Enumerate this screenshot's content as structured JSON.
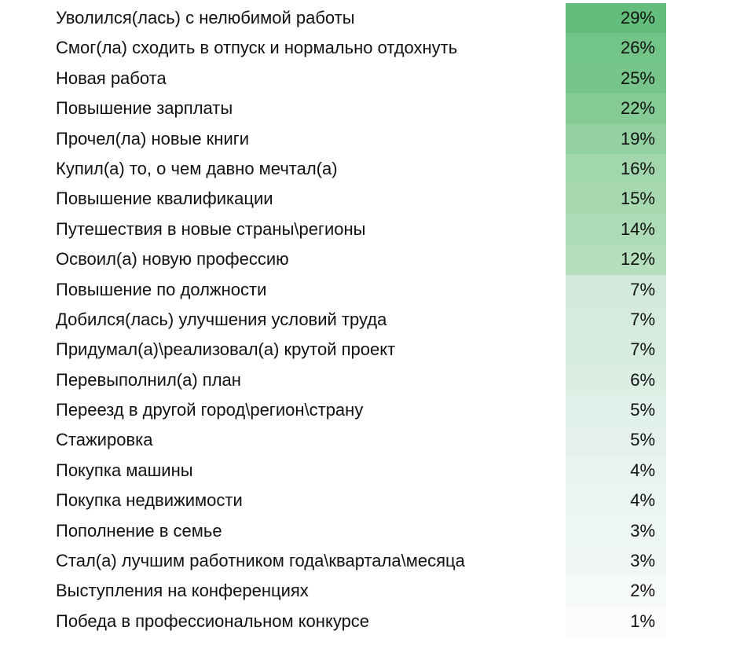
{
  "chart_data": {
    "type": "table",
    "title": "",
    "categories": [
      "Уволился(лась) с нелюбимой работы",
      "Смог(ла) сходить в отпуск и нормально отдохнуть",
      "Новая работа",
      "Повышение зарплаты",
      "Прочел(ла) новые книги",
      "Купил(а) то, о чем давно мечтал(а)",
      "Повышение квалификации",
      "Путешествия в новые страны\\регионы",
      "Освоил(а) новую профессию",
      "Повышение по должности",
      "Добился(лась) улучшения условий труда",
      "Придумал(а)\\реализовал(а) крутой проект",
      "Перевыполнил(а) план",
      "Переезд в другой город\\регион\\страну",
      "Стажировка",
      "Покупка машины",
      "Покупка недвижимости",
      "Пополнение в семье",
      "Стал(а) лучшим работником года\\квартала\\месяца",
      "Выступления на конференциях",
      "Победа в профессиональном конкурсе"
    ],
    "values": [
      29,
      26,
      25,
      22,
      19,
      16,
      15,
      14,
      12,
      7,
      7,
      7,
      6,
      5,
      5,
      4,
      4,
      3,
      3,
      2,
      1
    ],
    "unit": "%",
    "color_scale": {
      "max": "#63be7b",
      "min": "#fcfcff"
    }
  },
  "rows": [
    {
      "label": "Уволился(лась) с нелюбимой работы",
      "value": "29%",
      "color": "#63be7b"
    },
    {
      "label": "Смог(ла) сходить в отпуск и нормально отдохнуть",
      "value": "26%",
      "color": "#72c487"
    },
    {
      "label": "Новая работа",
      "value": "25%",
      "color": "#76c58a"
    },
    {
      "label": "Повышение зарплаты",
      "value": "22%",
      "color": "#85cb96"
    },
    {
      "label": "Прочел(ла) новые книги",
      "value": "19%",
      "color": "#93d1a1"
    },
    {
      "label": "Купил(а) то, о чем давно мечтал(а)",
      "value": "16%",
      "color": "#a2d7ad"
    },
    {
      "label": "Повышение квалификации",
      "value": "15%",
      "color": "#a7d9b1"
    },
    {
      "label": "Путешествия в новые страны\\регионы",
      "value": "14%",
      "color": "#acdbb5"
    },
    {
      "label": "Освоил(а) новую профессию",
      "value": "12%",
      "color": "#b6dfbd"
    },
    {
      "label": "Повышение по должности",
      "value": "7%",
      "color": "#d2eadb"
    },
    {
      "label": "Добился(лась) улучшения условий труда",
      "value": "7%",
      "color": "#d4ebdd"
    },
    {
      "label": "Придумал(а)\\реализовал(а) крутой проект",
      "value": "7%",
      "color": "#d6ecdf"
    },
    {
      "label": "Перевыполнил(а) план",
      "value": "6%",
      "color": "#dbeee3"
    },
    {
      "label": "Переезд в другой город\\регион\\страну",
      "value": "5%",
      "color": "#e1f0e8"
    },
    {
      "label": "Стажировка",
      "value": "5%",
      "color": "#e3f1ea"
    },
    {
      "label": "Покупка машины",
      "value": "4%",
      "color": "#e8f3ee"
    },
    {
      "label": "Покупка недвижимости",
      "value": "4%",
      "color": "#eaf4f0"
    },
    {
      "label": "Пополнение в семье",
      "value": "3%",
      "color": "#eef6f3"
    },
    {
      "label": "Стал(а) лучшим работником года\\квартала\\месяца",
      "value": "3%",
      "color": "#f1f7f6"
    },
    {
      "label": "Выступления на конференциях",
      "value": "2%",
      "color": "#f6f9fa"
    },
    {
      "label": "Победа в профессиональном конкурсе",
      "value": "1%",
      "color": "#fbfbfd"
    }
  ]
}
